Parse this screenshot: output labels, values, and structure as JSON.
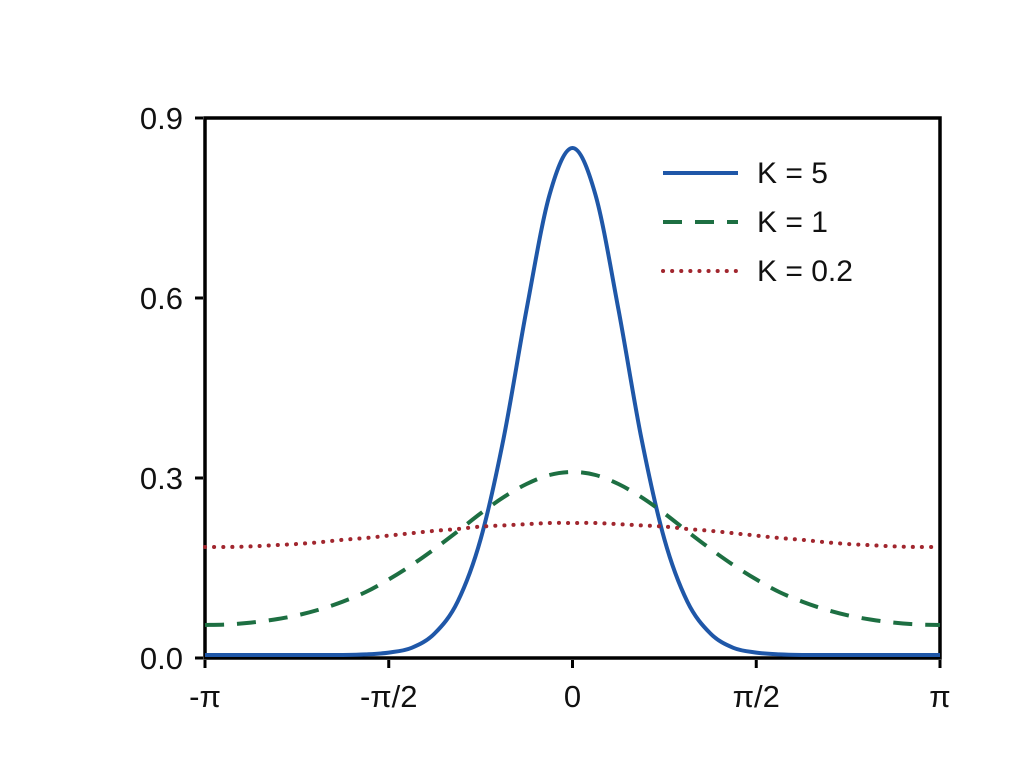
{
  "figure": {
    "background": "#ffffff",
    "axis_color": "#000000",
    "tick_label_color": "#111111"
  },
  "chart_data": {
    "type": "line",
    "title": "",
    "xlabel": "",
    "ylabel": "",
    "grid": false,
    "box": true,
    "xlim_pi": [
      -1,
      1
    ],
    "ylim": [
      0,
      0.9
    ],
    "xticks": [
      {
        "value": -1,
        "label": "-π"
      },
      {
        "value": -0.5,
        "label": "-π/2"
      },
      {
        "value": 0,
        "label": "0"
      },
      {
        "value": 0.5,
        "label": "π/2"
      },
      {
        "value": 1,
        "label": "π"
      }
    ],
    "yticks": [
      {
        "value": 0,
        "label": "0.0"
      },
      {
        "value": 0.3,
        "label": "0.3"
      },
      {
        "value": 0.6,
        "label": "0.6"
      },
      {
        "value": 0.9,
        "label": "0.9"
      }
    ],
    "x_unit": "pi",
    "x_pi": [
      -1,
      -0.9375,
      -0.875,
      -0.8125,
      -0.75,
      -0.6875,
      -0.625,
      -0.5625,
      -0.5,
      -0.4375,
      -0.375,
      -0.3125,
      -0.25,
      -0.1875,
      -0.125,
      -0.0625,
      0,
      0.0625,
      0.125,
      0.1875,
      0.25,
      0.3125,
      0.375,
      0.4375,
      0.5,
      0.5625,
      0.625,
      0.6875,
      0.75,
      0.8125,
      0.875,
      0.9375,
      1
    ],
    "series": [
      {
        "name": "K = 5",
        "style": "solid",
        "color": "#1f57a8",
        "values": [
          0.005,
          0.005,
          0.005,
          0.005,
          0.005,
          0.005,
          0.005,
          0.006,
          0.009,
          0.017,
          0.041,
          0.094,
          0.198,
          0.366,
          0.581,
          0.772,
          0.85,
          0.772,
          0.581,
          0.366,
          0.198,
          0.094,
          0.041,
          0.017,
          0.009,
          0.006,
          0.005,
          0.005,
          0.005,
          0.005,
          0.005,
          0.005,
          0.005
        ]
      },
      {
        "name": "K = 1",
        "style": "dashed",
        "color": "#1d6f42",
        "values": [
          0.055,
          0.056,
          0.059,
          0.064,
          0.071,
          0.081,
          0.094,
          0.11,
          0.131,
          0.155,
          0.182,
          0.211,
          0.241,
          0.268,
          0.29,
          0.305,
          0.31,
          0.305,
          0.29,
          0.268,
          0.241,
          0.211,
          0.182,
          0.155,
          0.131,
          0.11,
          0.094,
          0.081,
          0.071,
          0.064,
          0.059,
          0.056,
          0.055
        ]
      },
      {
        "name": "K = 0.2",
        "style": "dotted",
        "color": "#a1262e",
        "values": [
          0.185,
          0.185,
          0.186,
          0.188,
          0.19,
          0.193,
          0.197,
          0.2,
          0.204,
          0.208,
          0.212,
          0.215,
          0.219,
          0.221,
          0.223,
          0.225,
          0.225,
          0.225,
          0.223,
          0.221,
          0.219,
          0.215,
          0.212,
          0.208,
          0.204,
          0.2,
          0.197,
          0.193,
          0.19,
          0.188,
          0.186,
          0.185,
          0.185
        ]
      }
    ],
    "legend": {
      "position": "upper right",
      "frame": false
    }
  }
}
